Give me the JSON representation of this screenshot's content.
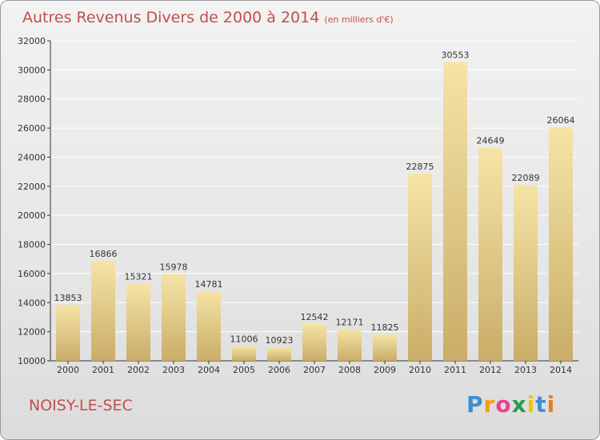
{
  "title": "Autres Revenus Divers de 2000 à 2014",
  "subtitle": "(en milliers d'€)",
  "city": "NOISY-LE-SEC",
  "brand": {
    "letters": [
      "P",
      "r",
      "o",
      "x",
      "i",
      "t",
      "i"
    ],
    "colors": [
      "#3d8fd1",
      "#f39c12",
      "#e84393",
      "#2a9d4a",
      "#f1c40f",
      "#3d8fd1",
      "#e67e22"
    ]
  },
  "colors": {
    "title": "#c0504d",
    "bar_light": "#f6e4a6",
    "bar_dark": "#c9ad68",
    "grid": "#ffffff",
    "axis": "#333333"
  },
  "chart_data": {
    "type": "bar",
    "categories": [
      "2000",
      "2001",
      "2002",
      "2003",
      "2004",
      "2005",
      "2006",
      "2007",
      "2008",
      "2009",
      "2010",
      "2011",
      "2012",
      "2013",
      "2014"
    ],
    "values": [
      13853,
      16866,
      15321,
      15978,
      14781,
      11006,
      10923,
      12542,
      12171,
      11825,
      22875,
      30553,
      24649,
      22089,
      26064
    ],
    "ylim": [
      10000,
      32000
    ],
    "yticks": [
      "10000",
      "12000",
      "14000",
      "16000",
      "18000",
      "20000",
      "22000",
      "24000",
      "26000",
      "28000",
      "30000",
      "32000"
    ],
    "grid": true
  }
}
